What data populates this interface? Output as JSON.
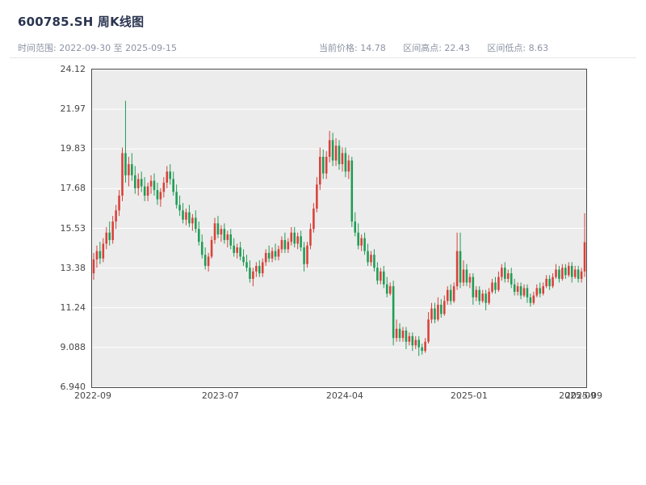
{
  "header": {
    "title": "600785.SH 周K线图",
    "subtitle": "时间范围: 2022-09-30 至 2025-09-15",
    "current_price_label": "当前价格: 14.78",
    "range_high_label": "区间高点: 22.43",
    "range_low_label": "区间低点: 8.63"
  },
  "chart_data": {
    "type": "candlestick",
    "title": "600785.SH 周K线图",
    "symbol": "600785.SH",
    "interval": "weekly",
    "start_date": "2022-09-30",
    "end_date": "2025-09-15",
    "current_price": 14.78,
    "range_high": 22.43,
    "range_low": 8.63,
    "ylim": [
      6.94,
      24.12
    ],
    "grid": "horizontal-white-on-gray",
    "up_color": "#d9413a",
    "down_color": "#1f9d55",
    "plot_bg": "#ececec",
    "grid_color": "#ffffff",
    "y_ticks": [
      {
        "value": 24.12,
        "label": "24.12"
      },
      {
        "value": 21.9725,
        "label": "21.97"
      },
      {
        "value": 19.825,
        "label": "19.83"
      },
      {
        "value": 17.6775,
        "label": "17.68"
      },
      {
        "value": 15.53,
        "label": "15.53"
      },
      {
        "value": 13.3825,
        "label": "13.38"
      },
      {
        "value": 11.235,
        "label": "11.24"
      },
      {
        "value": 9.0875,
        "label": "9.088"
      },
      {
        "value": 6.94,
        "label": "6.940"
      }
    ],
    "x_ticks": [
      {
        "week": 0,
        "label": "2022-09"
      },
      {
        "week": 40,
        "label": "2023-07"
      },
      {
        "week": 79,
        "label": "2024-04"
      },
      {
        "week": 118,
        "label": "2025-01"
      },
      {
        "week": 152,
        "label": "2025-09"
      },
      {
        "week": 154,
        "label": "2025-09"
      }
    ],
    "ohlc_format": [
      "open",
      "high",
      "low",
      "close"
    ],
    "ohlc": [
      [
        13.1,
        14.2,
        12.75,
        13.85
      ],
      [
        13.85,
        14.6,
        13.4,
        14.3
      ],
      [
        14.3,
        14.8,
        13.6,
        13.9
      ],
      [
        13.9,
        15.0,
        13.7,
        14.7
      ],
      [
        14.7,
        15.6,
        14.4,
        15.3
      ],
      [
        15.3,
        15.9,
        14.6,
        14.9
      ],
      [
        14.9,
        16.2,
        14.7,
        15.9
      ],
      [
        15.9,
        16.8,
        15.5,
        16.5
      ],
      [
        16.5,
        17.6,
        16.2,
        17.3
      ],
      [
        17.3,
        19.9,
        17.0,
        19.6
      ],
      [
        19.6,
        22.43,
        18.0,
        18.4
      ],
      [
        18.4,
        19.4,
        17.8,
        19.0
      ],
      [
        19.0,
        19.6,
        18.1,
        18.4
      ],
      [
        18.4,
        18.9,
        17.4,
        17.7
      ],
      [
        17.7,
        18.5,
        17.3,
        18.2
      ],
      [
        18.2,
        18.6,
        17.5,
        17.8
      ],
      [
        17.8,
        18.3,
        17.0,
        17.3
      ],
      [
        17.3,
        18.0,
        17.0,
        17.8
      ],
      [
        17.8,
        18.4,
        17.4,
        18.1
      ],
      [
        18.1,
        18.5,
        17.3,
        17.6
      ],
      [
        17.6,
        18.0,
        16.8,
        17.1
      ],
      [
        17.1,
        17.7,
        16.7,
        17.5
      ],
      [
        17.5,
        18.3,
        17.2,
        18.0
      ],
      [
        18.0,
        18.9,
        17.7,
        18.6
      ],
      [
        18.6,
        19.0,
        17.9,
        18.2
      ],
      [
        18.2,
        18.6,
        17.3,
        17.5
      ],
      [
        17.5,
        17.9,
        16.6,
        16.8
      ],
      [
        16.8,
        17.3,
        16.2,
        16.5
      ],
      [
        16.5,
        16.9,
        15.8,
        16.0
      ],
      [
        16.0,
        16.6,
        15.7,
        16.4
      ],
      [
        16.4,
        16.8,
        15.6,
        15.8
      ],
      [
        15.8,
        16.3,
        15.4,
        16.1
      ],
      [
        16.1,
        16.5,
        15.3,
        15.5
      ],
      [
        15.5,
        15.9,
        14.6,
        14.8
      ],
      [
        14.8,
        15.2,
        13.9,
        14.1
      ],
      [
        14.1,
        14.5,
        13.3,
        13.5
      ],
      [
        13.5,
        14.2,
        13.2,
        14.0
      ],
      [
        14.0,
        15.1,
        13.9,
        14.9
      ],
      [
        14.9,
        16.1,
        14.7,
        15.8
      ],
      [
        15.8,
        16.2,
        15.0,
        15.2
      ],
      [
        15.2,
        15.7,
        14.8,
        15.5
      ],
      [
        15.5,
        15.8,
        14.7,
        14.9
      ],
      [
        14.9,
        15.4,
        14.5,
        15.2
      ],
      [
        15.2,
        15.5,
        14.4,
        14.6
      ],
      [
        14.6,
        15.0,
        14.0,
        14.2
      ],
      [
        14.2,
        14.7,
        13.9,
        14.5
      ],
      [
        14.5,
        14.8,
        13.8,
        14.0
      ],
      [
        14.0,
        14.4,
        13.5,
        13.7
      ],
      [
        13.7,
        14.1,
        13.2,
        13.4
      ],
      [
        13.4,
        13.8,
        12.6,
        12.8
      ],
      [
        12.8,
        13.4,
        12.4,
        13.2
      ],
      [
        13.2,
        13.7,
        12.9,
        13.5
      ],
      [
        13.5,
        13.8,
        12.9,
        13.1
      ],
      [
        13.1,
        13.9,
        12.9,
        13.7
      ],
      [
        13.7,
        14.4,
        13.5,
        14.2
      ],
      [
        14.2,
        14.6,
        13.7,
        13.9
      ],
      [
        13.9,
        14.5,
        13.7,
        14.3
      ],
      [
        14.3,
        14.7,
        13.8,
        14.0
      ],
      [
        14.0,
        14.6,
        13.8,
        14.4
      ],
      [
        14.4,
        15.1,
        14.2,
        14.9
      ],
      [
        14.9,
        15.3,
        14.2,
        14.4
      ],
      [
        14.4,
        15.0,
        14.2,
        14.8
      ],
      [
        14.8,
        15.6,
        14.6,
        15.3
      ],
      [
        15.3,
        15.6,
        14.5,
        14.7
      ],
      [
        14.7,
        15.3,
        14.4,
        15.1
      ],
      [
        15.1,
        15.4,
        14.3,
        14.5
      ],
      [
        14.5,
        14.8,
        13.2,
        13.6
      ],
      [
        13.6,
        14.8,
        13.4,
        14.6
      ],
      [
        14.6,
        15.8,
        14.4,
        15.5
      ],
      [
        15.5,
        16.9,
        15.3,
        16.6
      ],
      [
        16.6,
        18.3,
        16.4,
        17.9
      ],
      [
        17.9,
        19.9,
        17.6,
        19.4
      ],
      [
        19.4,
        19.8,
        18.2,
        18.5
      ],
      [
        18.5,
        19.7,
        18.2,
        19.4
      ],
      [
        19.4,
        20.8,
        19.1,
        20.3
      ],
      [
        20.3,
        20.7,
        18.9,
        19.2
      ],
      [
        19.2,
        20.4,
        18.9,
        20.0
      ],
      [
        20.0,
        20.3,
        18.7,
        19.0
      ],
      [
        19.0,
        19.9,
        18.6,
        19.6
      ],
      [
        19.6,
        19.9,
        18.3,
        18.6
      ],
      [
        18.6,
        19.5,
        18.2,
        19.2
      ],
      [
        19.2,
        19.4,
        15.6,
        15.9
      ],
      [
        15.9,
        16.4,
        15.1,
        15.3
      ],
      [
        15.3,
        15.8,
        14.4,
        14.6
      ],
      [
        14.6,
        15.2,
        14.3,
        15.0
      ],
      [
        15.0,
        15.3,
        14.1,
        14.3
      ],
      [
        14.3,
        14.7,
        13.5,
        13.7
      ],
      [
        13.7,
        14.3,
        13.5,
        14.1
      ],
      [
        14.1,
        14.4,
        13.2,
        13.4
      ],
      [
        13.4,
        13.7,
        12.5,
        12.7
      ],
      [
        12.7,
        13.4,
        12.5,
        13.2
      ],
      [
        13.2,
        13.5,
        12.3,
        12.5
      ],
      [
        12.5,
        12.9,
        11.8,
        12.0
      ],
      [
        12.0,
        12.6,
        11.9,
        12.4
      ],
      [
        12.4,
        12.7,
        9.2,
        9.6
      ],
      [
        9.6,
        10.6,
        9.4,
        10.1
      ],
      [
        10.1,
        10.4,
        9.4,
        9.6
      ],
      [
        9.6,
        10.2,
        9.4,
        10.0
      ],
      [
        10.0,
        10.2,
        9.0,
        9.4
      ],
      [
        9.4,
        9.9,
        9.2,
        9.7
      ],
      [
        9.7,
        9.9,
        8.9,
        9.2
      ],
      [
        9.2,
        9.7,
        9.0,
        9.5
      ],
      [
        9.5,
        9.7,
        8.63,
        9.1
      ],
      [
        9.1,
        9.3,
        8.7,
        8.9
      ],
      [
        8.9,
        9.6,
        8.8,
        9.4
      ],
      [
        9.4,
        11.0,
        9.3,
        10.6
      ],
      [
        10.6,
        11.5,
        10.4,
        11.2
      ],
      [
        11.2,
        11.5,
        10.4,
        10.6
      ],
      [
        10.6,
        11.8,
        10.5,
        11.4
      ],
      [
        11.4,
        11.7,
        10.7,
        10.9
      ],
      [
        10.9,
        11.9,
        10.8,
        11.6
      ],
      [
        11.6,
        12.4,
        11.4,
        12.2
      ],
      [
        12.2,
        12.5,
        11.4,
        11.6
      ],
      [
        11.6,
        12.6,
        11.5,
        12.4
      ],
      [
        12.4,
        15.3,
        12.2,
        14.3
      ],
      [
        14.3,
        15.3,
        12.3,
        12.6
      ],
      [
        12.6,
        13.8,
        12.4,
        13.3
      ],
      [
        13.3,
        13.6,
        12.4,
        12.6
      ],
      [
        12.6,
        13.1,
        12.3,
        12.9
      ],
      [
        12.9,
        13.1,
        11.4,
        11.8
      ],
      [
        11.8,
        12.4,
        11.6,
        12.2
      ],
      [
        12.2,
        12.4,
        11.4,
        11.6
      ],
      [
        11.6,
        12.2,
        11.5,
        12.0
      ],
      [
        12.0,
        12.2,
        11.1,
        11.5
      ],
      [
        11.5,
        12.3,
        11.4,
        12.1
      ],
      [
        12.1,
        12.8,
        12.0,
        12.6
      ],
      [
        12.6,
        12.9,
        12.0,
        12.2
      ],
      [
        12.2,
        13.2,
        12.1,
        12.9
      ],
      [
        12.9,
        13.6,
        12.7,
        13.4
      ],
      [
        13.4,
        13.7,
        12.6,
        12.8
      ],
      [
        12.8,
        13.3,
        12.6,
        13.1
      ],
      [
        13.1,
        13.4,
        12.3,
        12.5
      ],
      [
        12.5,
        12.8,
        11.9,
        12.1
      ],
      [
        12.1,
        12.6,
        11.9,
        12.4
      ],
      [
        12.4,
        12.6,
        11.7,
        11.9
      ],
      [
        11.9,
        12.5,
        11.8,
        12.3
      ],
      [
        12.3,
        12.5,
        11.5,
        11.8
      ],
      [
        11.8,
        12.0,
        11.3,
        11.5
      ],
      [
        11.5,
        12.1,
        11.4,
        11.9
      ],
      [
        11.9,
        12.5,
        11.8,
        12.3
      ],
      [
        12.3,
        12.6,
        11.8,
        12.0
      ],
      [
        12.0,
        12.6,
        11.9,
        12.4
      ],
      [
        12.4,
        13.0,
        12.3,
        12.8
      ],
      [
        12.8,
        13.0,
        12.2,
        12.4
      ],
      [
        12.4,
        13.1,
        12.3,
        12.9
      ],
      [
        12.9,
        13.6,
        12.8,
        13.3
      ],
      [
        13.3,
        13.5,
        12.6,
        12.8
      ],
      [
        12.8,
        13.6,
        12.7,
        13.4
      ],
      [
        13.4,
        13.6,
        12.8,
        13.0
      ],
      [
        13.0,
        13.7,
        12.9,
        13.5
      ],
      [
        13.5,
        13.7,
        12.6,
        12.9
      ],
      [
        12.9,
        13.5,
        12.8,
        13.3
      ],
      [
        13.3,
        13.5,
        12.6,
        12.8
      ],
      [
        12.8,
        13.4,
        12.6,
        13.2
      ],
      [
        13.2,
        16.35,
        12.9,
        14.78
      ]
    ]
  }
}
